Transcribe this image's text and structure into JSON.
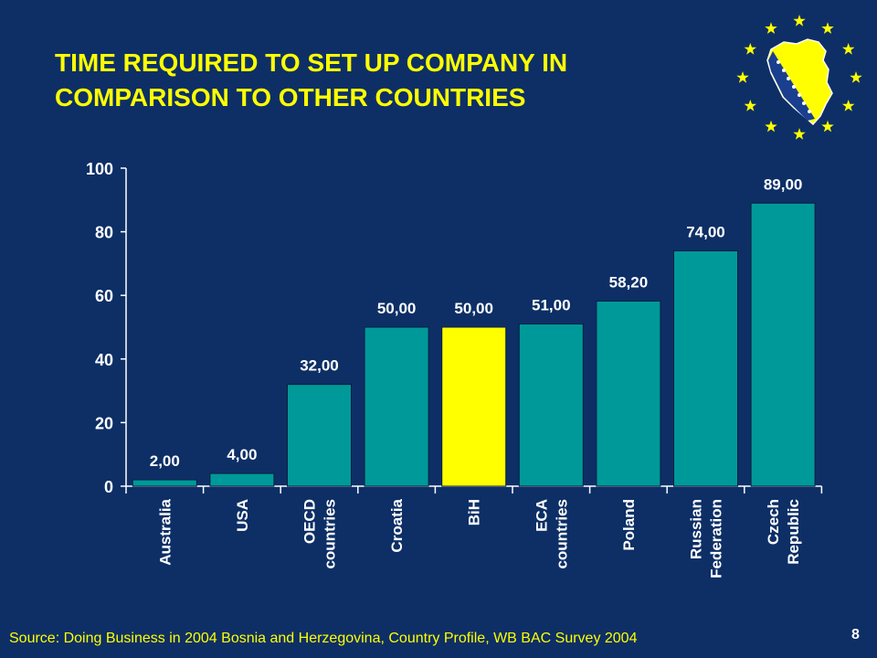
{
  "slide": {
    "title_line1": "TIME REQUIRED TO SET UP COMPANY IN",
    "title_line2": "COMPARISON TO OTHER COUNTRIES",
    "source": "Source: Doing Business in 2004 Bosnia and Herzegovina, Country Profile, WB BAC Survey 2004",
    "page_number": "8"
  },
  "colors": {
    "background": "#0d2f66",
    "bar": "#009999",
    "highlight_bar": "#ffff00",
    "title": "#ffff00",
    "axis_text": "#ffffff"
  },
  "chart_data": {
    "type": "bar",
    "title": "",
    "xlabel": "",
    "ylabel": "",
    "ylim": [
      0,
      100
    ],
    "yticks": [
      0,
      20,
      40,
      60,
      80,
      100
    ],
    "categories": [
      [
        "Australia"
      ],
      [
        "USA"
      ],
      [
        "OECD",
        "countries"
      ],
      [
        "Croatia"
      ],
      [
        "BiH"
      ],
      [
        "ECA",
        "countries"
      ],
      [
        "Poland"
      ],
      [
        "Russian",
        "Federation"
      ],
      [
        "Czech",
        "Republic"
      ]
    ],
    "values": [
      2.0,
      4.0,
      32.0,
      50.0,
      50.0,
      51.0,
      58.2,
      74.0,
      89.0
    ],
    "value_labels": [
      "2,00",
      "4,00",
      "32,00",
      "50,00",
      "50,00",
      "51,00",
      "58,20",
      "74,00",
      "89,00"
    ],
    "highlight_index": 4,
    "grid": false,
    "legend": "none"
  }
}
